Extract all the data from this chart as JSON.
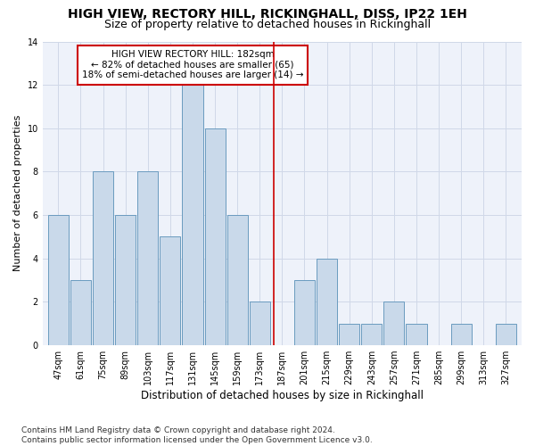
{
  "title": "HIGH VIEW, RECTORY HILL, RICKINGHALL, DISS, IP22 1EH",
  "subtitle": "Size of property relative to detached houses in Rickinghall",
  "xlabel": "Distribution of detached houses by size in Rickinghall",
  "ylabel": "Number of detached properties",
  "bins": [
    47,
    61,
    75,
    89,
    103,
    117,
    131,
    145,
    159,
    173,
    187,
    201,
    215,
    229,
    243,
    257,
    271,
    285,
    299,
    313,
    327
  ],
  "values": [
    6,
    3,
    8,
    6,
    8,
    5,
    12,
    10,
    6,
    2,
    0,
    3,
    4,
    1,
    1,
    2,
    1,
    0,
    1,
    0,
    1
  ],
  "bar_color": "#c9d9ea",
  "bar_edge_color": "#6a9bbf",
  "ref_line_x": 182,
  "ref_line_color": "#cc0000",
  "annotation_text": "HIGH VIEW RECTORY HILL: 182sqm\n← 82% of detached houses are smaller (65)\n18% of semi-detached houses are larger (14) →",
  "annotation_box_color": "#ffffff",
  "annotation_box_edge": "#cc0000",
  "ylim": [
    0,
    14
  ],
  "yticks": [
    0,
    2,
    4,
    6,
    8,
    10,
    12,
    14
  ],
  "grid_color": "#d0d8e8",
  "bg_color": "#eef2fa",
  "footer": "Contains HM Land Registry data © Crown copyright and database right 2024.\nContains public sector information licensed under the Open Government Licence v3.0.",
  "title_fontsize": 10,
  "subtitle_fontsize": 9,
  "xlabel_fontsize": 8.5,
  "ylabel_fontsize": 8,
  "tick_fontsize": 7,
  "annotation_fontsize": 7.5,
  "footer_fontsize": 6.5
}
